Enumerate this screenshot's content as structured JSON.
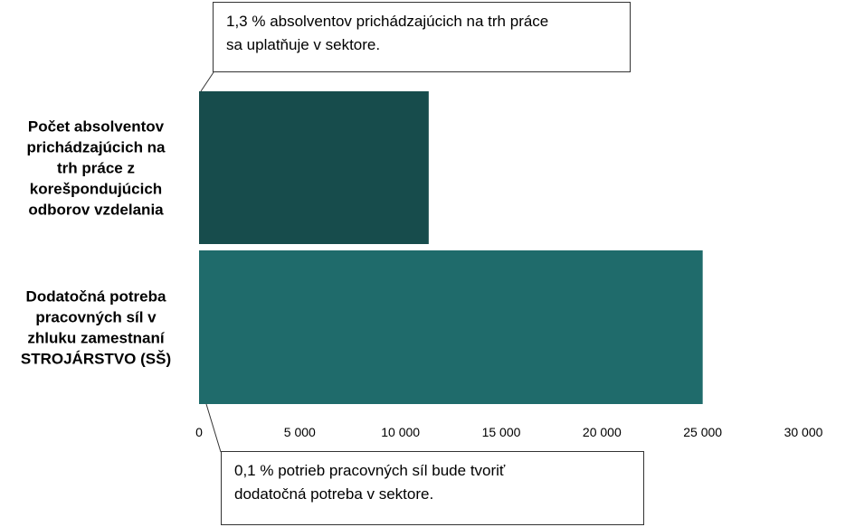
{
  "chart_data": {
    "type": "bar",
    "orientation": "horizontal",
    "title": "",
    "xlabel": "",
    "ylabel": "",
    "xlim": [
      0,
      30000
    ],
    "ticks": [
      0,
      5000,
      10000,
      15000,
      20000,
      25000,
      30000
    ],
    "tick_labels": [
      "0",
      "5 000",
      "10 000",
      "15 000",
      "20 000",
      "25 000",
      "30 000"
    ],
    "grid": false,
    "legend": "none",
    "categories": [
      {
        "label_lines": [
          "Počet absolventov",
          "prichádzajúcich na",
          "trh práce z",
          "korešpondujúcich",
          "odborov vzdelania"
        ],
        "value": 11400,
        "color": "#174c4c"
      },
      {
        "label_lines": [
          "Dodatočná potreba",
          "pracovných síl v",
          "zhluku zamestnaní",
          "STROJÁRSTVO (SŠ)"
        ],
        "value": 25000,
        "color": "#1f6b6b"
      }
    ],
    "annotations": [
      {
        "lines": [
          "1,3 % absolventov prichádzajúcich na trh práce",
          "sa uplatňuje v sektore."
        ]
      },
      {
        "lines": [
          "0,1 % potrieb pracovných síl bude tvoriť",
          "dodatočná potreba v sektore."
        ]
      }
    ]
  }
}
